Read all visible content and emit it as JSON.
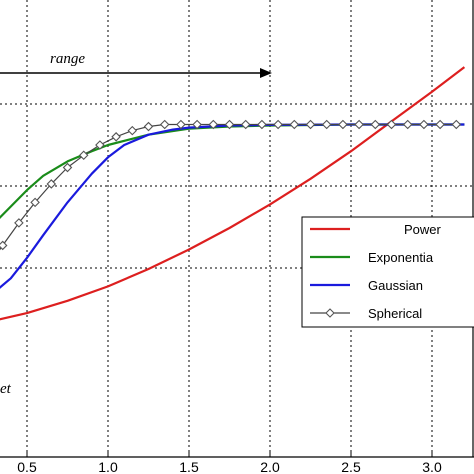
{
  "chart_data": {
    "type": "line",
    "xlim": [
      0.25,
      3.2
    ],
    "ylim": [
      0.0,
      1.25
    ],
    "grid": true,
    "grid_style": "dotted",
    "x_ticks": [
      "0.5",
      "1.0",
      "1.5",
      "2.0",
      "2.5",
      "3.0"
    ],
    "x_tick_values": [
      0.5,
      1.0,
      1.5,
      2.0,
      2.5,
      3.0
    ],
    "y_grid_values": [
      0.4,
      0.8,
      1.2
    ],
    "legend_position": "right",
    "annotations": {
      "range_label": "range",
      "range_arrow": {
        "x_start": 0.25,
        "x_end": 2.0,
        "y": 1.2
      },
      "nugget_label": "et"
    },
    "series": [
      {
        "name": "Power",
        "color": "#dd1f1f",
        "marker": "none",
        "x": [
          0.25,
          0.5,
          0.75,
          1.0,
          1.25,
          1.5,
          1.75,
          2.0,
          2.25,
          2.5,
          2.75,
          3.0,
          3.2
        ],
        "y": [
          0.135,
          0.18,
          0.24,
          0.31,
          0.395,
          0.49,
          0.595,
          0.71,
          0.835,
          0.97,
          1.115,
          1.26,
          1.38
        ]
      },
      {
        "name": "Exponentia",
        "color": "#1a8c1a",
        "marker": "none",
        "x": [
          0.25,
          0.4,
          0.5,
          0.6,
          0.75,
          0.9,
          1.0,
          1.25,
          1.5,
          1.75,
          2.0,
          2.5,
          3.0,
          3.2
        ],
        "y": [
          0.58,
          0.7,
          0.78,
          0.85,
          0.92,
          0.97,
          1.0,
          1.05,
          1.08,
          1.09,
          1.095,
          1.1,
          1.1,
          1.1
        ]
      },
      {
        "name": "Gaussian",
        "color": "#1a1add",
        "marker": "none",
        "x": [
          0.25,
          0.4,
          0.5,
          0.6,
          0.75,
          0.9,
          1.0,
          1.1,
          1.25,
          1.4,
          1.5,
          1.75,
          2.0,
          2.5,
          3.0,
          3.2
        ],
        "y": [
          0.25,
          0.35,
          0.45,
          0.56,
          0.72,
          0.86,
          0.94,
          1.0,
          1.05,
          1.075,
          1.085,
          1.095,
          1.098,
          1.1,
          1.1,
          1.1
        ]
      },
      {
        "name": "Spherical",
        "color": "#444444",
        "marker": "diamond",
        "x": [
          0.25,
          0.35,
          0.45,
          0.55,
          0.65,
          0.75,
          0.85,
          0.95,
          1.05,
          1.15,
          1.25,
          1.35,
          1.45,
          1.55,
          1.65,
          1.75,
          1.85,
          1.95,
          2.05,
          2.15,
          2.25,
          2.35,
          2.45,
          2.55,
          2.65,
          2.75,
          2.85,
          2.95,
          3.05,
          3.15
        ],
        "y": [
          0.4,
          0.51,
          0.62,
          0.72,
          0.81,
          0.89,
          0.95,
          1.0,
          1.04,
          1.07,
          1.09,
          1.1,
          1.1,
          1.1,
          1.1,
          1.1,
          1.1,
          1.1,
          1.1,
          1.1,
          1.1,
          1.1,
          1.1,
          1.1,
          1.1,
          1.1,
          1.1,
          1.1,
          1.1,
          1.1
        ]
      }
    ]
  }
}
